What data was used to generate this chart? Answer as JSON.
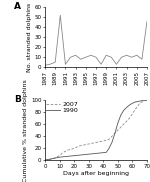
{
  "panel_A": {
    "years": [
      1987,
      1988,
      1989,
      1990,
      1991,
      1992,
      1993,
      1994,
      1995,
      1996,
      1997,
      1998,
      1999,
      2000,
      2001,
      2002,
      2003,
      2004,
      2005,
      2006,
      2007
    ],
    "values": [
      2,
      3,
      5,
      52,
      3,
      10,
      12,
      8,
      10,
      12,
      10,
      3,
      12,
      10,
      3,
      10,
      12,
      10,
      12,
      8,
      46
    ],
    "ylabel": "No. stranded dolphins",
    "ylim": [
      0,
      60
    ],
    "yticks": [
      0,
      10,
      20,
      30,
      40,
      50,
      60
    ],
    "xticks": [
      1987,
      1989,
      1991,
      1993,
      1995,
      1997,
      1999,
      2001,
      2003,
      2005,
      2007
    ],
    "line_color": "#888888",
    "label": "A"
  },
  "panel_B": {
    "days_2007": [
      0,
      5,
      8,
      10,
      12,
      14,
      16,
      18,
      20,
      22,
      24,
      26,
      28,
      30,
      32,
      34,
      36,
      38,
      40,
      42,
      44,
      46,
      50,
      54,
      58,
      62,
      65,
      68,
      70
    ],
    "cum_2007": [
      0,
      2,
      5,
      8,
      12,
      15,
      17,
      18,
      20,
      22,
      24,
      25,
      26,
      27,
      28,
      29,
      30,
      31,
      32,
      33,
      35,
      40,
      50,
      60,
      70,
      85,
      95,
      99,
      100
    ],
    "days_1990": [
      0,
      2,
      4,
      6,
      8,
      10,
      14,
      18,
      22,
      26,
      30,
      34,
      38,
      42,
      44,
      46,
      48,
      50,
      52,
      54,
      56,
      58,
      60,
      62,
      64,
      66,
      68,
      70
    ],
    "cum_1990": [
      0,
      1,
      2,
      3,
      4,
      5,
      6,
      7,
      8,
      9,
      10,
      11,
      12,
      13,
      20,
      30,
      45,
      62,
      75,
      83,
      88,
      92,
      95,
      97,
      98,
      99,
      100,
      100
    ],
    "ylabel": "Cumulative % stranded dolphins",
    "xlabel": "Days after beginning",
    "ylim": [
      0,
      100
    ],
    "yticks": [
      0,
      20,
      40,
      60,
      80,
      100
    ],
    "xlim": [
      0,
      70
    ],
    "xticks": [
      0,
      10,
      20,
      30,
      40,
      50,
      60,
      70
    ],
    "color_2007": "#888888",
    "color_1990": "#555555",
    "label": "B",
    "legend_2007": "2007",
    "legend_1990": "1990"
  },
  "background_color": "#ffffff",
  "tick_fontsize": 4.0,
  "label_fontsize": 4.5,
  "legend_fontsize": 4.5,
  "axis_label_fontsize": 4.5
}
